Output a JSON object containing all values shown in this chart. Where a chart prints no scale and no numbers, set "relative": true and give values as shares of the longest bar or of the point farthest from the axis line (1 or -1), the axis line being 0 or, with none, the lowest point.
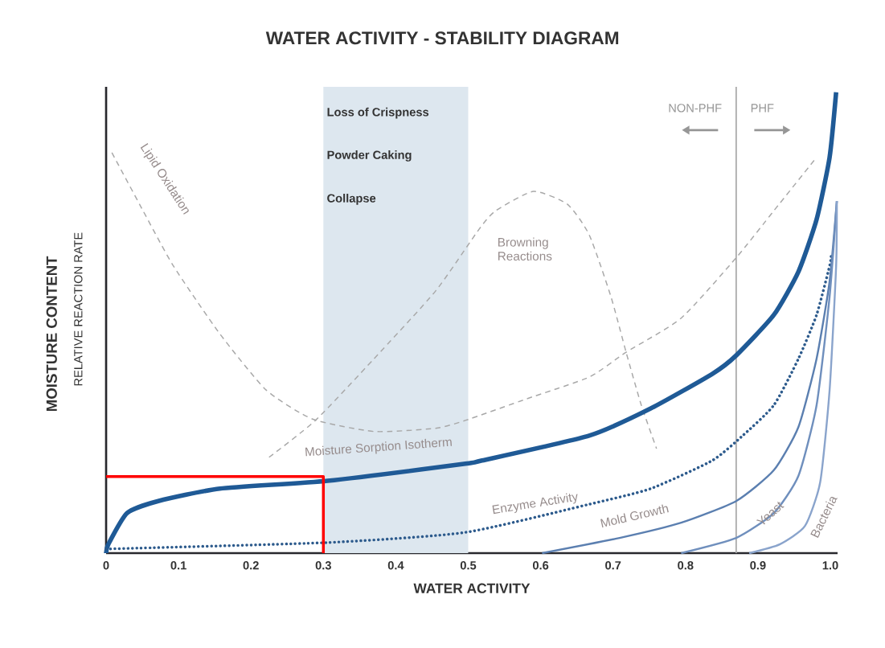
{
  "chart_data": {
    "type": "line",
    "title": "WATER ACTIVITY - STABILITY DIAGRAM",
    "xlabel": "WATER ACTIVITY",
    "ylabel": "MOISTURE CONTENT",
    "relative": true,
    "xlim": [
      0,
      1.01
    ],
    "xticks": [
      0,
      0.1,
      0.2,
      0.3,
      0.4,
      0.5,
      0.6,
      0.7,
      0.8,
      0.9,
      {
        "value": 1,
        "label": "1.0"
      }
    ],
    "bands": [
      {
        "axis": "x",
        "from": 0.3,
        "to": 0.5,
        "color": "#dde7ef"
      }
    ],
    "ref_lines": [
      {
        "axis": "x",
        "value": 0.87,
        "color": "#a8a8a8"
      }
    ],
    "annotations": [
      "Loss of Crispness",
      "Powder Caking",
      "Collapse",
      "NON-PHF",
      "PHF",
      "RELATIVE REACTION RATE"
    ],
    "series": [
      {
        "name": "Lipid Oxidation",
        "color": "#a8a8a8",
        "line_style": "dashed",
        "x": [
          0.008,
          0.051,
          0.093,
          0.157,
          0.221,
          0.285,
          0.37,
          0.455,
          0.496,
          0.581,
          0.667,
          0.718,
          0.794,
          0.87,
          0.922,
          0.981
        ],
        "values": [
          0.869,
          0.743,
          0.623,
          0.476,
          0.354,
          0.291,
          0.264,
          0.271,
          0.288,
          0.335,
          0.382,
          0.436,
          0.51,
          0.641,
          0.743,
          0.859
        ]
      },
      {
        "name": "Browning Reactions",
        "color": "#a8a8a8",
        "line_style": "dashed",
        "x": [
          0.225,
          0.289,
          0.37,
          0.455,
          0.515,
          0.538,
          0.59,
          0.637,
          0.667,
          0.697,
          0.718,
          0.739,
          0.76
        ],
        "values": [
          0.208,
          0.288,
          0.422,
          0.569,
          0.703,
          0.743,
          0.785,
          0.757,
          0.691,
          0.557,
          0.436,
          0.321,
          0.227
        ]
      },
      {
        "name": "Moisture Sorption Isotherm",
        "color": "#1f5a96",
        "line_style": "solid",
        "x": [
          0,
          0.003,
          0.029,
          0.072,
          0.157,
          0.306,
          0.496,
          0.519,
          0.667,
          0.752,
          0.837,
          0.87,
          0.922,
          0.956,
          0.981,
          0.999,
          1.008
        ],
        "values": [
          0,
          0.019,
          0.087,
          0.113,
          0.14,
          0.157,
          0.194,
          0.201,
          0.255,
          0.314,
          0.389,
          0.429,
          0.517,
          0.611,
          0.724,
          0.859,
          1.0
        ]
      },
      {
        "name": "Enzyme Activity",
        "color": "#2c5a8c",
        "line_style": "dotted",
        "x": [
          0,
          0.306,
          0.496,
          0.667,
          0.752,
          0.837,
          0.879,
          0.922,
          0.956,
          0.981,
          0.999,
          1.001
        ],
        "values": [
          0.009,
          0.023,
          0.045,
          0.106,
          0.14,
          0.201,
          0.255,
          0.321,
          0.422,
          0.517,
          0.623,
          0.644
        ]
      },
      {
        "name": "Mold Growth",
        "color": "#5b7fb0",
        "line_style": "solid",
        "x": [
          0.602,
          0.709,
          0.794,
          0.87,
          0.922,
          0.956,
          0.981,
          0.999,
          1.009
        ],
        "values": [
          0,
          0.033,
          0.066,
          0.113,
          0.18,
          0.274,
          0.422,
          0.59,
          0.764
        ]
      },
      {
        "name": "Yeast",
        "color": "#6f8fbd",
        "line_style": "solid",
        "x": [
          0.794,
          0.87,
          0.922,
          0.956,
          0.981,
          0.999,
          1.009
        ],
        "values": [
          0,
          0.033,
          0.087,
          0.168,
          0.321,
          0.557,
          0.764
        ]
      },
      {
        "name": "Bacteria",
        "color": "#8aa4cc",
        "line_style": "solid",
        "x": [
          0.888,
          0.93,
          0.965,
          0.986,
          0.999,
          1.008,
          1.009
        ],
        "values": [
          0,
          0.019,
          0.059,
          0.154,
          0.354,
          0.623,
          0.764
        ]
      },
      {
        "color": "#ff0000",
        "line_style": "solid",
        "x": [
          0,
          0.3,
          0.3
        ],
        "values": [
          0.166,
          0.166,
          0
        ]
      }
    ]
  }
}
